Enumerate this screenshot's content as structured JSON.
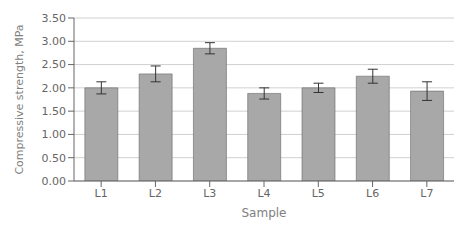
{
  "chart_data": {
    "type": "bar",
    "xlabel": "Sample",
    "ylabel": "Compressive strength, MPa",
    "categories": [
      "L1",
      "L2",
      "L3",
      "L4",
      "L5",
      "L6",
      "L7"
    ],
    "values": [
      2.0,
      2.3,
      2.85,
      1.88,
      2.0,
      2.25,
      1.93
    ],
    "errors": [
      0.13,
      0.17,
      0.12,
      0.12,
      0.1,
      0.15,
      0.2
    ],
    "color": "#a8a8a8",
    "ylim": [
      0.0,
      3.5
    ],
    "yticks": [
      {
        "value": 0.0,
        "label": "0.00"
      },
      {
        "value": 0.5,
        "label": "0.50"
      },
      {
        "value": 1.0,
        "label": "1.00"
      },
      {
        "value": 1.5,
        "label": "1.50"
      },
      {
        "value": 2.0,
        "label": "2.00"
      },
      {
        "value": 2.5,
        "label": "2.50"
      },
      {
        "value": 3.0,
        "label": "3.00"
      },
      {
        "value": 3.5,
        "label": "3.50"
      }
    ],
    "grid": true
  }
}
